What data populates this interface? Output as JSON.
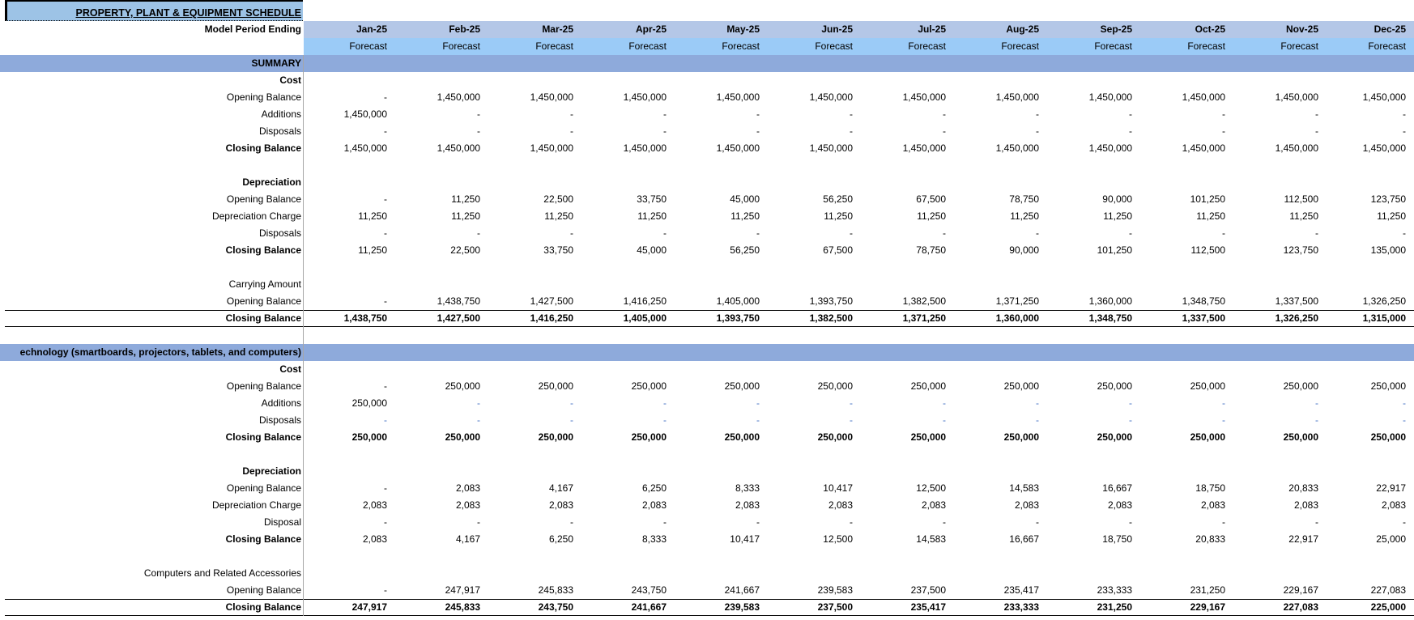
{
  "title": "PROPERTY, PLANT & EQUIPMENT  SCHEDULE",
  "header": {
    "period_label": "Model Period Ending",
    "periods": [
      "Jan-25",
      "Feb-25",
      "Mar-25",
      "Apr-25",
      "May-25",
      "Jun-25",
      "Jul-25",
      "Aug-25",
      "Sep-25",
      "Oct-25",
      "Nov-25",
      "Dec-25"
    ],
    "types": [
      "Forecast",
      "Forecast",
      "Forecast",
      "Forecast",
      "Forecast",
      "Forecast",
      "Forecast",
      "Forecast",
      "Forecast",
      "Forecast",
      "Forecast",
      "Forecast"
    ]
  },
  "summary": {
    "label": "SUMMARY",
    "cost_label": "Cost",
    "cost": {
      "opening": {
        "label": "Opening Balance",
        "values": [
          "-",
          "1,450,000",
          "1,450,000",
          "1,450,000",
          "1,450,000",
          "1,450,000",
          "1,450,000",
          "1,450,000",
          "1,450,000",
          "1,450,000",
          "1,450,000",
          "1,450,000"
        ]
      },
      "additions": {
        "label": "Additions",
        "values": [
          "1,450,000",
          "-",
          "-",
          "-",
          "-",
          "-",
          "-",
          "-",
          "-",
          "-",
          "-",
          "-"
        ]
      },
      "disposals": {
        "label": "Disposals",
        "values": [
          "-",
          "-",
          "-",
          "-",
          "-",
          "-",
          "-",
          "-",
          "-",
          "-",
          "-",
          "-"
        ]
      },
      "closing": {
        "label": "Closing Balance",
        "values": [
          "1,450,000",
          "1,450,000",
          "1,450,000",
          "1,450,000",
          "1,450,000",
          "1,450,000",
          "1,450,000",
          "1,450,000",
          "1,450,000",
          "1,450,000",
          "1,450,000",
          "1,450,000"
        ]
      }
    },
    "dep_label": "Depreciation",
    "dep": {
      "opening": {
        "label": "Opening Balance",
        "values": [
          "-",
          "11,250",
          "22,500",
          "33,750",
          "45,000",
          "56,250",
          "67,500",
          "78,750",
          "90,000",
          "101,250",
          "112,500",
          "123,750"
        ]
      },
      "charge": {
        "label": "Depreciation Charge",
        "values": [
          "11,250",
          "11,250",
          "11,250",
          "11,250",
          "11,250",
          "11,250",
          "11,250",
          "11,250",
          "11,250",
          "11,250",
          "11,250",
          "11,250"
        ]
      },
      "disposals": {
        "label": "Disposals",
        "values": [
          "-",
          "-",
          "-",
          "-",
          "-",
          "-",
          "-",
          "-",
          "-",
          "-",
          "-",
          "-"
        ]
      },
      "closing": {
        "label": "Closing Balance",
        "values": [
          "11,250",
          "22,500",
          "33,750",
          "45,000",
          "56,250",
          "67,500",
          "78,750",
          "90,000",
          "101,250",
          "112,500",
          "123,750",
          "135,000"
        ]
      }
    },
    "carry_label": "Carrying Amount",
    "carry": {
      "opening": {
        "label": "Opening Balance",
        "values": [
          "-",
          "1,438,750",
          "1,427,500",
          "1,416,250",
          "1,405,000",
          "1,393,750",
          "1,382,500",
          "1,371,250",
          "1,360,000",
          "1,348,750",
          "1,337,500",
          "1,326,250"
        ]
      },
      "closing": {
        "label": "Closing Balance",
        "values": [
          "1,438,750",
          "1,427,500",
          "1,416,250",
          "1,405,000",
          "1,393,750",
          "1,382,500",
          "1,371,250",
          "1,360,000",
          "1,348,750",
          "1,337,500",
          "1,326,250",
          "1,315,000"
        ]
      }
    }
  },
  "technology": {
    "label": "echnology (smartboards, projectors, tablets, and computers)",
    "cost_label": "Cost",
    "cost": {
      "opening": {
        "label": "Opening Balance",
        "values": [
          "-",
          "250,000",
          "250,000",
          "250,000",
          "250,000",
          "250,000",
          "250,000",
          "250,000",
          "250,000",
          "250,000",
          "250,000",
          "250,000"
        ]
      },
      "additions": {
        "label": "Additions",
        "values": [
          "250,000",
          "-",
          "-",
          "-",
          "-",
          "-",
          "-",
          "-",
          "-",
          "-",
          "-",
          "-"
        ]
      },
      "disposals": {
        "label": "Disposals",
        "values": [
          "-",
          "-",
          "-",
          "-",
          "-",
          "-",
          "-",
          "-",
          "-",
          "-",
          "-",
          "-"
        ]
      },
      "closing": {
        "label": "Closing Balance",
        "values": [
          "250,000",
          "250,000",
          "250,000",
          "250,000",
          "250,000",
          "250,000",
          "250,000",
          "250,000",
          "250,000",
          "250,000",
          "250,000",
          "250,000"
        ]
      }
    },
    "dep_label": "Depreciation",
    "dep": {
      "opening": {
        "label": "Opening Balance",
        "values": [
          "-",
          "2,083",
          "4,167",
          "6,250",
          "8,333",
          "10,417",
          "12,500",
          "14,583",
          "16,667",
          "18,750",
          "20,833",
          "22,917"
        ]
      },
      "charge": {
        "label": "Depreciation Charge",
        "values": [
          "2,083",
          "2,083",
          "2,083",
          "2,083",
          "2,083",
          "2,083",
          "2,083",
          "2,083",
          "2,083",
          "2,083",
          "2,083",
          "2,083"
        ]
      },
      "disposals": {
        "label": "Disposal",
        "values": [
          "-",
          "-",
          "-",
          "-",
          "-",
          "-",
          "-",
          "-",
          "-",
          "-",
          "-",
          "-"
        ]
      },
      "closing": {
        "label": "Closing Balance",
        "values": [
          "2,083",
          "4,167",
          "6,250",
          "8,333",
          "10,417",
          "12,500",
          "14,583",
          "16,667",
          "18,750",
          "20,833",
          "22,917",
          "25,000"
        ]
      }
    },
    "carry_label": "Computers and Related Accessories",
    "carry": {
      "opening": {
        "label": "Opening Balance",
        "values": [
          "-",
          "247,917",
          "245,833",
          "243,750",
          "241,667",
          "239,583",
          "237,500",
          "235,417",
          "233,333",
          "231,250",
          "229,167",
          "227,083"
        ]
      },
      "closing": {
        "label": "Closing Balance",
        "values": [
          "247,917",
          "245,833",
          "243,750",
          "241,667",
          "239,583",
          "237,500",
          "235,417",
          "233,333",
          "231,250",
          "229,167",
          "227,083",
          "225,000"
        ]
      }
    }
  },
  "colors": {
    "title_fill": "#9dc3e6",
    "period_fill": "#b4c7e7",
    "forecast_fill": "#9bcbf7",
    "section_band": "#8eaadb",
    "input_dash": "#4472c4"
  }
}
